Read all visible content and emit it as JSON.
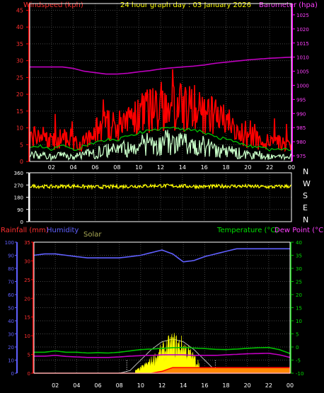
{
  "header": {
    "title": "24 hour graph day : 03 January 2026",
    "wind_label": "Windspeed (kph)",
    "baro_label": "Barometer (hpa)"
  },
  "direction_letters": [
    "N",
    "W",
    "S",
    "E",
    "N"
  ],
  "lower_labels": {
    "rain": "Rainfall (mm)",
    "humidity": "Humidity",
    "solar": "Solar",
    "temperature": "Temperature (°C)",
    "dewpoint": "Dew Point (°C)"
  },
  "colors": {
    "wind": "#ff0000",
    "wind_avg": "#00c000",
    "wind_calm": "#c8ffc8",
    "barometer": "#c000c0",
    "direction": "#ffff00",
    "humidity": "#6060ff",
    "rain": "#ff0000",
    "solar": "#ffff00",
    "temperature": "#00c000",
    "dewpoint": "#c000c0",
    "grid": "#444444",
    "frame": "#ffffff"
  },
  "chart_data": [
    {
      "type": "line",
      "name": "wind-barometer",
      "x_ticks": [
        "02",
        "04",
        "06",
        "08",
        "10",
        "12",
        "14",
        "16",
        "18",
        "20",
        "22",
        "00"
      ],
      "left_axis": {
        "ticks": [
          0,
          5,
          10,
          15,
          20,
          25,
          30,
          35,
          40,
          45
        ],
        "ylim": [
          0,
          47
        ]
      },
      "right_axis": {
        "ticks": [
          975,
          980,
          985,
          990,
          995,
          1000,
          1005,
          1010,
          1015,
          1020,
          1025
        ],
        "ylim": [
          973,
          1029
        ]
      },
      "hours": [
        0,
        1,
        2,
        3,
        4,
        5,
        6,
        7,
        8,
        9,
        10,
        11,
        12,
        13,
        14,
        15,
        16,
        17,
        18,
        19,
        20,
        21,
        22,
        23,
        24
      ],
      "series": [
        {
          "key": "gust",
          "axis": "left",
          "values": [
            7,
            8,
            6,
            7,
            5,
            6,
            9,
            11,
            10,
            12,
            14,
            15,
            16,
            17,
            16,
            15,
            15,
            13,
            11,
            9,
            7,
            6,
            5,
            6,
            4
          ]
        },
        {
          "key": "average",
          "axis": "left",
          "values": [
            3,
            3,
            2,
            3,
            2,
            3,
            4,
            5,
            5,
            6,
            7,
            8,
            8,
            9,
            8,
            8,
            7,
            6,
            5,
            4,
            3,
            3,
            2,
            2,
            2
          ]
        },
        {
          "key": "barometer",
          "axis": "right",
          "values": [
            1006.5,
            1006.5,
            1006.5,
            1006.5,
            1006,
            1005,
            1004.5,
            1004,
            1004,
            1004.3,
            1004.8,
            1005.2,
            1005.8,
            1006.2,
            1006.5,
            1006.8,
            1007.2,
            1007.8,
            1008.2,
            1008.6,
            1009,
            1009.3,
            1009.6,
            1009.8,
            1010
          ]
        }
      ]
    },
    {
      "type": "line",
      "name": "wind-direction",
      "x_ticks": [
        "02",
        "04",
        "06",
        "08",
        "10",
        "12",
        "14",
        "16",
        "18",
        "20",
        "22",
        "00"
      ],
      "left_axis": {
        "ticks": [
          0,
          90,
          180,
          270,
          360
        ],
        "ylim": [
          0,
          360
        ]
      },
      "hours": [
        0,
        2,
        4,
        6,
        8,
        10,
        12,
        14,
        16,
        18,
        20,
        22,
        24
      ],
      "series": [
        {
          "key": "direction",
          "axis": "left",
          "values": [
            262,
            258,
            262,
            255,
            258,
            262,
            265,
            262,
            258,
            262,
            260,
            256,
            262
          ]
        }
      ]
    },
    {
      "type": "line",
      "name": "rain-humidity-solar-temperature",
      "x_ticks": [
        "02",
        "04",
        "06",
        "08",
        "10",
        "12",
        "14",
        "16",
        "18",
        "20",
        "22",
        "00"
      ],
      "humidity_axis": {
        "ticks": [
          0,
          10,
          20,
          30,
          40,
          50,
          60,
          70,
          80,
          90,
          100
        ],
        "ylim": [
          0,
          100
        ]
      },
      "rain_axis": {
        "ticks": [
          0,
          5,
          10,
          15,
          20,
          25,
          30,
          35
        ],
        "ylim": [
          0,
          35
        ]
      },
      "temp_axis": {
        "ticks": [
          -10,
          -5,
          0,
          5,
          10,
          15,
          20,
          25,
          30,
          35,
          40
        ],
        "ylim": [
          -10,
          40
        ]
      },
      "hours": [
        0,
        1,
        2,
        3,
        4,
        5,
        6,
        7,
        8,
        9,
        10,
        11,
        12,
        13,
        14,
        15,
        16,
        17,
        18,
        19,
        20,
        21,
        22,
        23,
        24
      ],
      "series": [
        {
          "key": "humidity",
          "axis": "humidity",
          "values": [
            90,
            91,
            91,
            90,
            89,
            88,
            88,
            88,
            88,
            89,
            90,
            92,
            94,
            91,
            85,
            86,
            89,
            91,
            93,
            95,
            95,
            95,
            95,
            95,
            95
          ]
        },
        {
          "key": "temperature",
          "axis": "temp",
          "values": [
            -2,
            -2,
            -1.5,
            -2,
            -2,
            -2.3,
            -2.2,
            -2.3,
            -2,
            -1.5,
            -1,
            -0.8,
            -0.5,
            -0.3,
            -0.2,
            -0.4,
            -0.6,
            -0.9,
            -1.0,
            -0.8,
            -0.5,
            -0.3,
            -0.2,
            -1.0,
            -2.5
          ]
        },
        {
          "key": "dewpoint",
          "axis": "temp",
          "values": [
            -3.5,
            -3.5,
            -3.2,
            -3.6,
            -3.8,
            -4,
            -4,
            -4,
            -3.8,
            -3.5,
            -3.3,
            -3.2,
            -3.0,
            -3.0,
            -3.0,
            -3.2,
            -3.2,
            -3.2,
            -3.0,
            -2.8,
            -2.6,
            -2.5,
            -2.4,
            -3.0,
            -4.0
          ]
        },
        {
          "key": "rain",
          "axis": "rain",
          "values": [
            0,
            0,
            0,
            0,
            0,
            0,
            0,
            0,
            0,
            0,
            0,
            0,
            0.5,
            1.5,
            1.5,
            1.5,
            1.5,
            1.5,
            1.5,
            1.5,
            1.5,
            1.5,
            1.5,
            1.5,
            1.5
          ]
        },
        {
          "key": "solar",
          "axis": "humidity",
          "values": [
            0,
            0,
            0,
            0,
            0,
            0,
            0,
            0,
            0,
            0,
            4,
            10,
            18,
            25,
            22,
            12,
            4,
            0,
            0,
            0,
            0,
            0,
            0,
            0,
            0
          ]
        },
        {
          "key": "solar_max",
          "axis": "humidity",
          "values": [
            0,
            0,
            0,
            0,
            0,
            0,
            0,
            0,
            0,
            2,
            10,
            18,
            24,
            26,
            24,
            18,
            10,
            2,
            0,
            0,
            0,
            0,
            0,
            0,
            0
          ]
        }
      ]
    }
  ]
}
